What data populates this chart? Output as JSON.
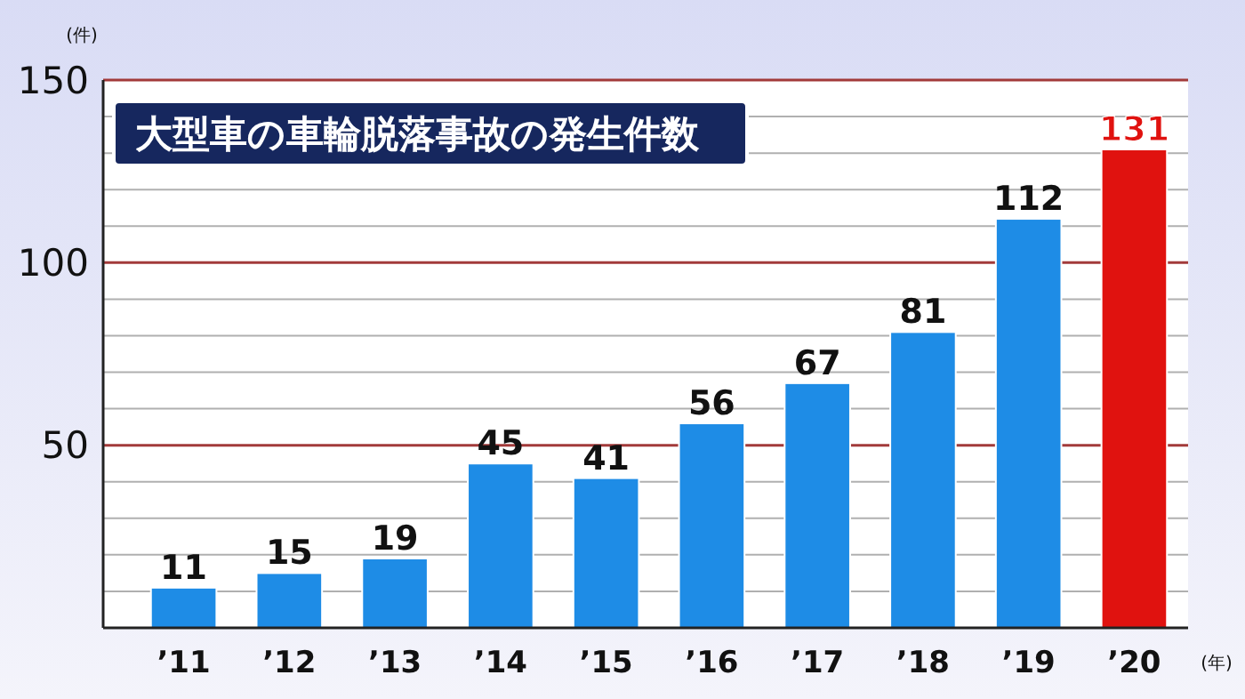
{
  "chart_data": {
    "type": "bar",
    "title": "大型車の車輪脱落事故の発生件数",
    "ylabel": "(件)",
    "xlabel": "(年)",
    "categories": [
      "’11",
      "’12",
      "’13",
      "’14",
      "’15",
      "’16",
      "’17",
      "’18",
      "’19",
      "’20"
    ],
    "values": [
      11,
      15,
      19,
      45,
      41,
      56,
      67,
      81,
      112,
      131
    ],
    "colors": [
      "#1e8ce6",
      "#1e8ce6",
      "#1e8ce6",
      "#1e8ce6",
      "#1e8ce6",
      "#1e8ce6",
      "#1e8ce6",
      "#1e8ce6",
      "#1e8ce6",
      "#e0120f"
    ],
    "ylim": [
      0,
      150
    ],
    "yticks": [
      {
        "value": 10,
        "label": null
      },
      {
        "value": 20,
        "label": null
      },
      {
        "value": 30,
        "label": null
      },
      {
        "value": 40,
        "label": null
      },
      50,
      {
        "value": 60,
        "label": null
      },
      {
        "value": 70,
        "label": null
      },
      {
        "value": 80,
        "label": null
      },
      {
        "value": 90,
        "label": null
      },
      100,
      {
        "value": 110,
        "label": null
      },
      {
        "value": 120,
        "label": null
      },
      {
        "value": 130,
        "label": null
      },
      {
        "value": 140,
        "label": null
      },
      150
    ],
    "grid": "y",
    "data_labels": true
  }
}
